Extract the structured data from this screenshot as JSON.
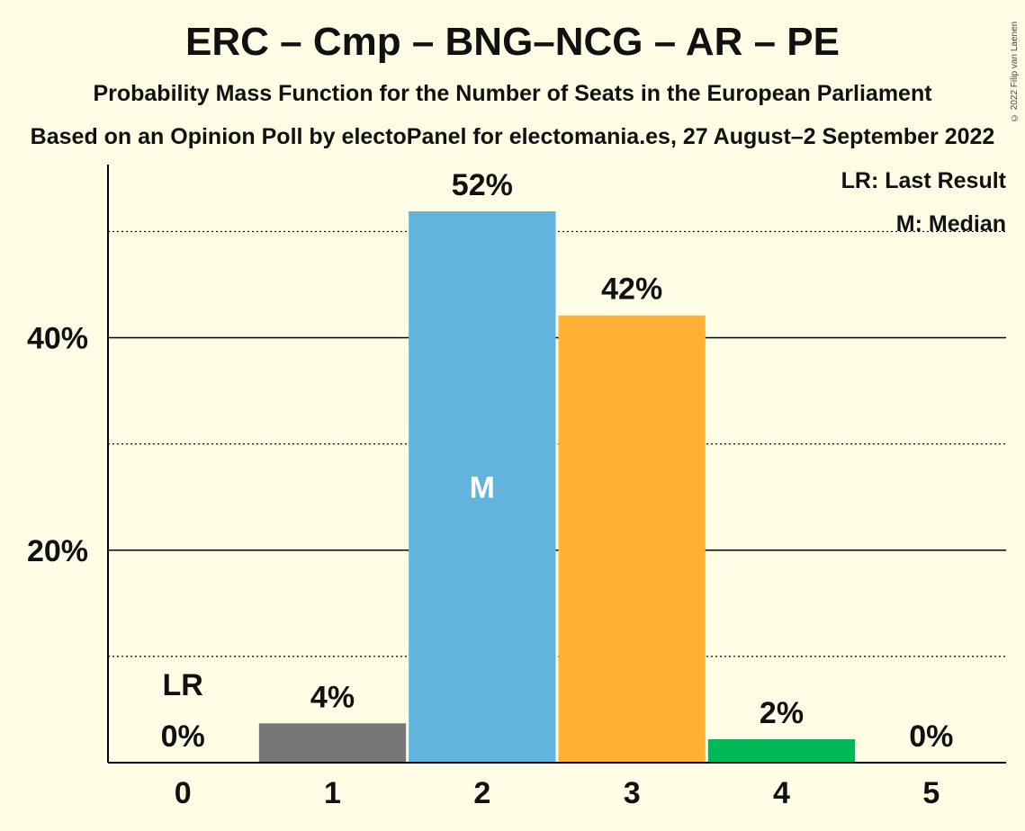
{
  "header": {
    "title": "ERC – Cmp – BNG–NCG – AR – PE",
    "subtitle": "Probability Mass Function for the Number of Seats in the European Parliament",
    "source": "Based on an Opinion Poll by electoPanel for electomania.es, 27 August–2 September 2022",
    "copyright": "© 2022 Filip van Laenen"
  },
  "legend": {
    "last_result": "LR: Last Result",
    "median": "M: Median"
  },
  "chart_data": {
    "type": "bar",
    "title": "ERC – Cmp – BNG–NCG – AR – PE",
    "subtitle": "Probability Mass Function for the Number of Seats in the European Parliament",
    "categories": [
      "0",
      "1",
      "2",
      "3",
      "4",
      "5"
    ],
    "values": [
      0,
      3.7,
      51.9,
      42.1,
      2.2,
      0
    ],
    "value_labels": [
      "0%",
      "4%",
      "52%",
      "42%",
      "2%",
      "0%"
    ],
    "bar_colors": [
      "#777777",
      "#777777",
      "#62B3DE",
      "#FFB134",
      "#00B856",
      "#777777"
    ],
    "ylim": [
      0,
      56.3
    ],
    "y_ticks": [
      20,
      40
    ],
    "y_tick_labels": [
      "20%",
      "40%"
    ],
    "y_minor_gridlines": [
      10,
      30,
      50
    ],
    "last_result_seat": 0,
    "last_result_marker": "LR",
    "median_seat": 2,
    "median_marker": "M",
    "legend_position": "top-right",
    "grid": true
  }
}
